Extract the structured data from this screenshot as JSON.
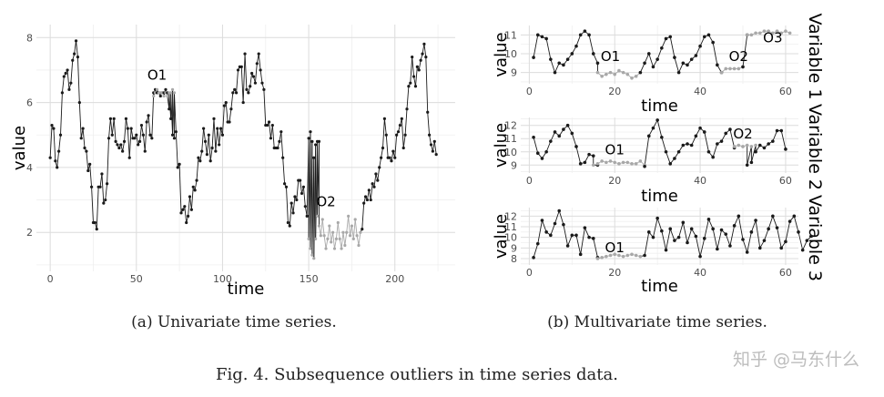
{
  "figure_caption": "Fig. 4.  Subsequence outliers in time series data.",
  "watermark": "知乎 @马东什么",
  "colors": {
    "normal": "#1a1a1a",
    "outlier": "#a8a8a8",
    "grid_major": "#dcdcdc",
    "grid_minor": "#efefef"
  },
  "chart_data": [
    {
      "type": "line",
      "caption": "(a) Univariate time series.",
      "xlabel": "time",
      "ylabel": "value",
      "xlim": [
        -8,
        235
      ],
      "ylim": [
        0.8,
        8.4
      ],
      "xticks": [
        0,
        50,
        100,
        150,
        200
      ],
      "yticks": [
        2,
        4,
        6,
        8
      ],
      "grid": true,
      "series": [
        {
          "y": [
            4.3,
            5.3,
            5.2,
            4.2,
            4.0,
            4.5,
            5.0,
            6.3,
            6.8,
            6.9,
            7.0,
            6.4,
            6.6,
            7.3,
            7.5,
            7.9,
            7.4,
            6.0,
            4.9,
            5.2,
            4.6,
            4.5,
            3.9,
            4.1,
            3.4,
            2.3,
            2.3,
            2.1,
            3.4,
            3.4,
            3.8,
            2.9,
            3.0,
            3.5,
            4.9,
            5.5,
            5.0,
            5.5,
            4.8,
            4.7,
            4.6,
            4.7,
            4.5,
            4.8,
            5.5,
            5.2,
            4.3,
            5.2,
            4.9,
            4.9,
            5.0,
            4.7,
            4.8,
            5.3,
            5.0,
            4.5,
            5.4,
            5.6,
            5.0,
            4.9,
            6.3,
            6.4,
            6.3,
            6.3,
            6.2,
            6.3,
            6.3,
            6.4,
            6.3,
            5.8,
            5.5,
            5.0,
            4.9,
            5.1,
            4.0,
            4.1,
            2.6,
            2.7,
            2.8,
            2.3,
            2.5,
            3.1,
            2.7,
            3.4,
            3.3,
            3.6,
            4.3,
            4.2,
            4.5,
            5.2,
            4.8,
            4.4,
            5.0,
            4.2,
            4.6,
            5.5,
            4.5,
            5.2,
            4.7,
            5.2,
            5.0,
            5.9,
            6.0,
            5.4,
            5.4,
            5.8,
            6.3,
            6.4,
            6.3,
            7.0,
            7.1,
            7.1,
            6.0,
            7.5,
            6.4,
            6.3,
            6.5,
            6.9,
            6.8,
            6.6,
            7.2,
            7.5,
            7.0,
            6.6,
            6.4,
            5.3,
            5.3,
            5.4,
            4.9,
            5.3,
            4.6,
            4.6,
            4.6,
            4.8,
            5.1,
            4.3,
            3.5,
            3.4,
            2.3,
            2.2,
            2.9,
            2.6,
            3.1,
            3.0,
            3.6,
            3.6,
            3.2,
            3.4,
            2.8,
            2.5,
            4.9,
            5.1,
            4.8,
            4.3,
            4.7,
            4.8,
            4.8
          ],
          "x_start": 0,
          "role": "normal"
        },
        {
          "y": [
            6.2,
            6.3,
            6.4,
            6.3,
            6.3,
            6.3,
            6.2,
            6.3,
            6.2,
            6.3,
            6.3,
            6.4,
            6.3
          ],
          "x_start": 60,
          "role": "outlier"
        },
        {
          "y": [
            1.8,
            1.5,
            1.3,
            1.2,
            1.8,
            2.5,
            2.2,
            1.9,
            2.4,
            1.9,
            1.5,
            1.8,
            2.2,
            1.7,
            2.0,
            1.5,
            1.8,
            2.3,
            1.8,
            1.5,
            2.0,
            1.6,
            2.0,
            2.5,
            1.9,
            2.2,
            1.8,
            2.4,
            1.9,
            1.6,
            2.0
          ],
          "x_start": 150,
          "role": "outlier"
        },
        {
          "y": [
            2.1,
            2.9,
            3.1,
            3.0,
            3.3,
            3.0,
            3.5,
            3.4,
            3.8,
            3.6,
            4.0,
            4.3,
            4.6,
            5.5,
            5.0,
            4.3,
            4.3,
            4.2,
            4.5,
            4.3,
            5.0,
            5.1,
            5.3,
            5.5,
            4.6,
            5.0,
            5.8,
            6.5,
            6.6,
            7.4,
            6.8,
            6.5,
            7.1,
            7.0,
            7.3,
            7.5,
            7.8,
            7.4,
            5.7,
            5.0,
            4.7,
            4.5,
            4.8,
            4.4
          ],
          "x_start": 181,
          "role": "normal"
        }
      ],
      "annotations": [
        {
          "text": "O1",
          "x": 62,
          "y": 6.7
        },
        {
          "text": "O2",
          "x": 160,
          "y": 2.8
        }
      ]
    },
    {
      "type": "line",
      "caption": "(b) Multivariate time series.",
      "xlabel": "time",
      "ylabel": "value",
      "strip_title": "Variable 1",
      "xlim": [
        -2,
        63
      ],
      "ylim": [
        8.4,
        11.5
      ],
      "xticks": [
        0,
        20,
        40,
        60
      ],
      "yticks": [
        9,
        10,
        11
      ],
      "grid": true,
      "series": [
        {
          "y": [
            9.8,
            11.0,
            10.9,
            10.8,
            9.7,
            9.0,
            9.5,
            9.4,
            9.7,
            10.0,
            10.4,
            11.0,
            11.2,
            11.0,
            10.0,
            9.5
          ],
          "x_start": 1,
          "role": "normal"
        },
        {
          "y": [
            9.0,
            8.8,
            8.9,
            9.0,
            8.9,
            9.1,
            9.0,
            8.9,
            8.7,
            8.8,
            9.0
          ],
          "x_start": 16,
          "role": "outlier"
        },
        {
          "y": [
            9.0,
            9.5,
            10.0,
            9.3,
            9.7,
            10.3,
            10.8,
            10.9,
            9.8,
            9.0,
            9.5,
            9.4,
            9.7,
            9.9,
            10.4,
            10.9,
            11.0,
            10.6,
            9.4,
            9.0
          ],
          "x_start": 26,
          "role": "normal"
        },
        {
          "y": [
            9.0,
            9.2,
            9.2,
            9.2,
            9.2,
            9.3
          ],
          "x_start": 45,
          "role": "outlier"
        },
        {
          "y": [
            9.3,
            11.0
          ],
          "x_start": 50,
          "role": "normal"
        },
        {
          "y": [
            11.0,
            11.0,
            11.1,
            11.1,
            11.2,
            11.2,
            11.1,
            11.2,
            11.1,
            11.2,
            11.1
          ],
          "x_start": 51,
          "role": "outlier"
        }
      ],
      "annotations": [
        {
          "text": "O1",
          "x": 19,
          "y": 9.6
        },
        {
          "text": "O2",
          "x": 49,
          "y": 9.6
        },
        {
          "text": "O3",
          "x": 57,
          "y": 10.6
        }
      ]
    },
    {
      "type": "line",
      "xlabel": "time",
      "ylabel": "value",
      "strip_title": "Variable 2",
      "xlim": [
        -2,
        63
      ],
      "ylim": [
        8.4,
        12.6
      ],
      "xticks": [
        0,
        20,
        40,
        60
      ],
      "yticks": [
        9,
        10,
        11,
        12
      ],
      "grid": true,
      "series": [
        {
          "y": [
            11.1,
            9.9,
            9.5,
            10.0,
            10.8,
            11.5,
            11.2,
            11.7,
            12.0,
            11.4,
            10.4,
            9.1,
            9.2,
            9.8,
            9.7,
            9.0
          ],
          "x_start": 1,
          "role": "normal"
        },
        {
          "y": [
            9.0,
            9.1,
            9.3,
            9.2,
            9.3,
            9.2,
            9.1,
            9.2,
            9.2,
            9.1,
            9.1,
            9.3,
            9.0
          ],
          "x_start": 15,
          "role": "outlier"
        },
        {
          "y": [
            8.9,
            11.2,
            11.8,
            12.4,
            11.1,
            10.0,
            9.1,
            9.5,
            10.0,
            10.5,
            10.6,
            10.5,
            11.2,
            11.8,
            11.5,
            10.0,
            9.6,
            10.6,
            10.8,
            11.4,
            11.7,
            10.3
          ],
          "x_start": 27,
          "role": "normal"
        },
        {
          "y": [
            10.4,
            10.5,
            10.4,
            10.5,
            10.4,
            10.5
          ],
          "x_start": 48,
          "role": "outlier"
        },
        {
          "y": [
            9.0,
            9.2,
            10.0,
            10.5,
            10.3,
            10.6,
            10.8,
            11.6,
            11.6,
            10.2
          ],
          "x_start": 51,
          "role": "normal"
        }
      ],
      "annotations": [
        {
          "text": "O1",
          "x": 20,
          "y": 9.8
        },
        {
          "text": "O2",
          "x": 50,
          "y": 11.0
        }
      ]
    },
    {
      "type": "line",
      "xlabel": "time",
      "ylabel": "value",
      "strip_title": "Variable 3",
      "xlim": [
        -2,
        63
      ],
      "ylim": [
        7.4,
        12.8
      ],
      "xticks": [
        0,
        20,
        40,
        60
      ],
      "yticks": [
        8,
        9,
        10,
        11,
        12
      ],
      "grid": true,
      "series": [
        {
          "y": [
            8.1,
            9.4,
            11.6,
            10.5,
            10.2,
            11.3,
            12.5,
            11.2,
            9.2,
            10.2,
            10.2,
            8.4,
            10.9,
            10.0,
            9.9,
            8.1
          ],
          "x_start": 1,
          "role": "normal"
        },
        {
          "y": [
            8.0,
            8.1,
            8.2,
            8.3,
            8.4,
            8.3,
            8.2,
            8.3,
            8.4,
            8.3,
            8.2
          ],
          "x_start": 16,
          "role": "outlier"
        },
        {
          "y": [
            8.3,
            10.5,
            10.0,
            11.8,
            10.6,
            8.8,
            10.8,
            9.7,
            10.0,
            11.4,
            9.5,
            10.8,
            10.1,
            8.2,
            9.9,
            11.7,
            10.8,
            8.9,
            10.7,
            10.3,
            9.2,
            11.1,
            12.0,
            9.8,
            8.6,
            10.5,
            11.6,
            9.0,
            9.7,
            10.8,
            12.0,
            10.9,
            9.0,
            9.6,
            11.5,
            12.0,
            10.5,
            8.8,
            9.7,
            10.1
          ],
          "x_start": 27,
          "role": "normal"
        }
      ],
      "annotations": [
        {
          "text": "O1",
          "x": 20,
          "y": 8.6
        }
      ]
    }
  ]
}
